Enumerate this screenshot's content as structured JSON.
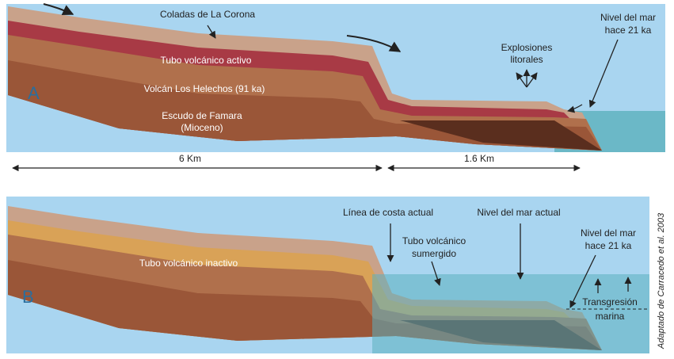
{
  "panels": [
    {
      "label": "A",
      "coladas": "Coladas de La Corona",
      "tube": "Tubo volcánico activo",
      "helechos": "Volcán Los Helechos (91 ka)",
      "famara": [
        "Escudo de Famara",
        "(Mioceno)"
      ],
      "explosions": [
        "Explosiones",
        "litorales"
      ],
      "sea_level": [
        "Nivel del mar",
        "hace 21 ka"
      ]
    },
    {
      "label": "B",
      "tube": "Tubo volcánico inactivo",
      "coast": "Línea de costa actual",
      "sea_now": "Nivel del mar actual",
      "submerged": [
        "Tubo volcánico",
        "sumergido"
      ],
      "sea_level": [
        "Nivel del mar",
        "hace 21 ka"
      ],
      "transgression": [
        "Transgresión",
        "marina"
      ]
    }
  ],
  "scale": {
    "left": "6 Km",
    "right": "1.6 Km"
  },
  "credit": "Adaptado de Carracedo et al. 2003"
}
